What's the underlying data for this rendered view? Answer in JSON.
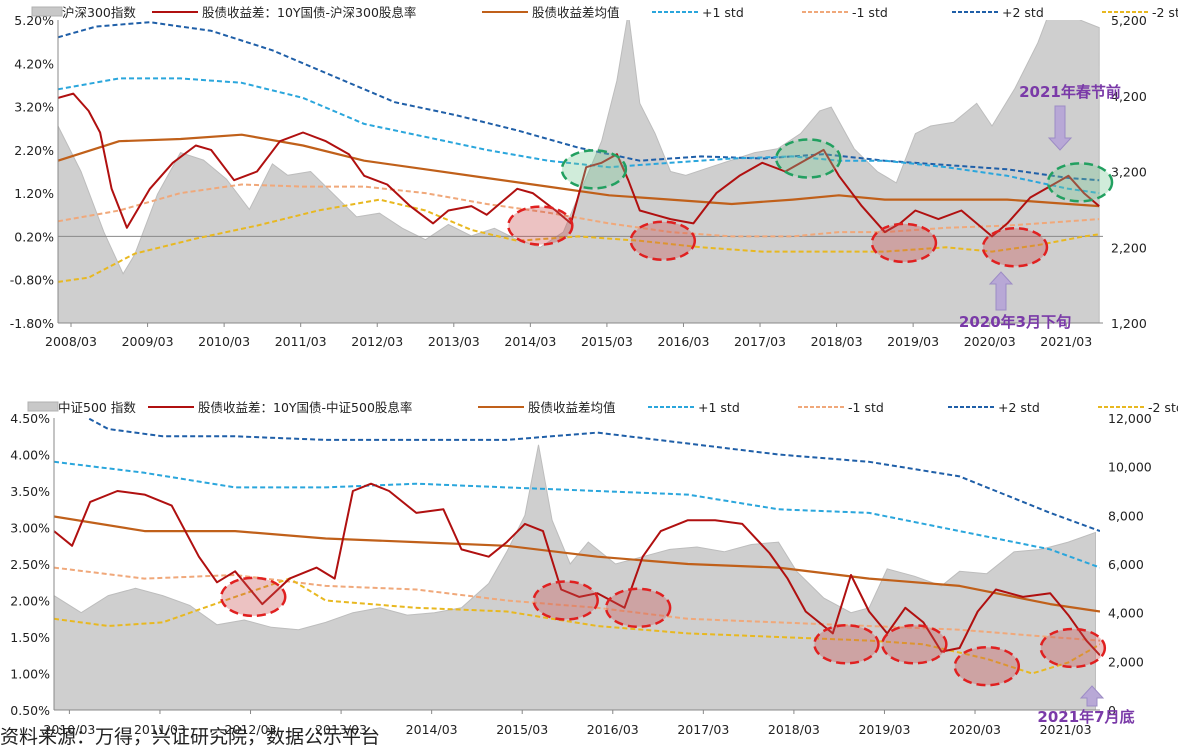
{
  "chart_data": [
    {
      "type": "line",
      "legend": [
        {
          "name": "沪深300指数",
          "kind": "area",
          "color": "#c8c8c8"
        },
        {
          "name": "股债收益差：10Y国债-沪深300股息率",
          "kind": "line",
          "color": "#b01010"
        },
        {
          "name": "股债收益差均值",
          "kind": "line",
          "color": "#c0601a"
        },
        {
          "name": "+1 std",
          "kind": "dash",
          "color": "#2aa6dc"
        },
        {
          "name": "-1 std",
          "kind": "dash",
          "color": "#f0a87a"
        },
        {
          "name": "+2 std",
          "kind": "dash",
          "color": "#1f5fa8"
        },
        {
          "name": "-2 std",
          "kind": "dash",
          "color": "#e8b820"
        }
      ],
      "x_ticks": [
        "2008/03",
        "2009/03",
        "2010/03",
        "2011/03",
        "2012/03",
        "2013/03",
        "2014/03",
        "2015/03",
        "2016/03",
        "2017/03",
        "2018/03",
        "2019/03",
        "2020/03",
        "2021/03"
      ],
      "x_range": [
        2008.0,
        2021.65
      ],
      "y_left_ticks": [
        "5.20%",
        "4.20%",
        "3.20%",
        "2.20%",
        "1.20%",
        "0.20%",
        "-0.80%",
        "-1.80%"
      ],
      "y_left_range": [
        -1.8,
        5.2
      ],
      "y_right_ticks": [
        "5,200",
        "4,200",
        "3,200",
        "2,200",
        "1,200"
      ],
      "y_right_range": [
        1200,
        5200
      ],
      "index": {
        "x": [
          2008.0,
          2008.3,
          2008.6,
          2008.85,
          2009.0,
          2009.3,
          2009.6,
          2009.9,
          2010.2,
          2010.5,
          2010.8,
          2011.0,
          2011.3,
          2011.6,
          2011.9,
          2012.2,
          2012.5,
          2012.8,
          2013.1,
          2013.4,
          2013.7,
          2014.0,
          2014.3,
          2014.6,
          2014.85,
          2015.1,
          2015.3,
          2015.45,
          2015.6,
          2015.8,
          2016.0,
          2016.2,
          2016.5,
          2016.8,
          2017.1,
          2017.4,
          2017.7,
          2017.95,
          2018.1,
          2018.4,
          2018.7,
          2018.95,
          2019.2,
          2019.4,
          2019.7,
          2020.0,
          2020.2,
          2020.5,
          2020.8,
          2021.1,
          2021.35,
          2021.6
        ],
        "y": [
          3800,
          3200,
          2400,
          1850,
          2100,
          2900,
          3450,
          3350,
          3100,
          2700,
          3300,
          3150,
          3200,
          2900,
          2600,
          2650,
          2450,
          2300,
          2500,
          2350,
          2450,
          2300,
          2200,
          2400,
          3000,
          3600,
          4400,
          5300,
          4100,
          3700,
          3200,
          3150,
          3250,
          3350,
          3450,
          3500,
          3700,
          4000,
          4050,
          3500,
          3200,
          3050,
          3700,
          3800,
          3850,
          4100,
          3800,
          4300,
          4900,
          5700,
          5200,
          5100
        ]
      },
      "spread": {
        "x": [
          2008.0,
          2008.2,
          2008.4,
          2008.55,
          2008.7,
          2008.9,
          2009.2,
          2009.5,
          2009.8,
          2010.0,
          2010.3,
          2010.6,
          2010.9,
          2011.2,
          2011.5,
          2011.8,
          2012.0,
          2012.3,
          2012.6,
          2012.9,
          2013.1,
          2013.4,
          2013.6,
          2013.8,
          2014.0,
          2014.2,
          2014.5,
          2014.7,
          2014.9,
          2015.1,
          2015.3,
          2015.45,
          2015.6,
          2015.8,
          2016.0,
          2016.3,
          2016.6,
          2016.9,
          2017.2,
          2017.5,
          2017.8,
          2018.0,
          2018.2,
          2018.5,
          2018.8,
          2019.0,
          2019.2,
          2019.5,
          2019.8,
          2020.0,
          2020.2,
          2020.4,
          2020.7,
          2021.0,
          2021.2,
          2021.4,
          2021.6
        ],
        "y": [
          3.4,
          3.5,
          3.1,
          2.6,
          1.3,
          0.4,
          1.3,
          1.9,
          2.3,
          2.2,
          1.5,
          1.7,
          2.4,
          2.6,
          2.4,
          2.1,
          1.6,
          1.4,
          0.9,
          0.5,
          0.8,
          0.9,
          0.7,
          1.0,
          1.3,
          1.2,
          0.8,
          0.5,
          1.8,
          1.9,
          2.1,
          1.5,
          0.8,
          0.7,
          0.6,
          0.5,
          1.2,
          1.6,
          1.9,
          1.7,
          2.0,
          2.2,
          1.6,
          0.9,
          0.3,
          0.5,
          0.8,
          0.6,
          0.8,
          0.5,
          0.2,
          0.5,
          1.1,
          1.4,
          1.6,
          1.2,
          0.9
        ]
      },
      "mean": {
        "x": [
          2008.0,
          2008.8,
          2009.6,
          2010.4,
          2011.2,
          2012.0,
          2012.8,
          2013.6,
          2014.4,
          2015.2,
          2016.0,
          2016.8,
          2017.6,
          2018.2,
          2018.8,
          2019.6,
          2020.4,
          2021.2,
          2021.6
        ],
        "y": [
          1.95,
          2.4,
          2.45,
          2.55,
          2.3,
          1.95,
          1.75,
          1.55,
          1.35,
          1.15,
          1.05,
          0.95,
          1.05,
          1.15,
          1.05,
          1.05,
          1.05,
          0.95,
          0.9
        ]
      },
      "plus1": {
        "x": [
          2008.0,
          2008.8,
          2009.6,
          2010.4,
          2011.2,
          2012.0,
          2012.8,
          2013.6,
          2014.4,
          2015.2,
          2016.0,
          2016.8,
          2017.6,
          2018.2,
          2018.8,
          2019.6,
          2020.4,
          2021.2,
          2021.6
        ],
        "y": [
          3.6,
          3.85,
          3.85,
          3.75,
          3.4,
          2.8,
          2.5,
          2.2,
          1.95,
          1.8,
          1.9,
          2.0,
          2.05,
          1.95,
          1.95,
          1.8,
          1.6,
          1.3,
          1.2
        ]
      },
      "minus1": {
        "x": [
          2008.0,
          2008.8,
          2009.6,
          2010.4,
          2011.2,
          2012.0,
          2012.8,
          2013.6,
          2014.4,
          2015.2,
          2016.0,
          2016.8,
          2017.6,
          2018.2,
          2018.8,
          2019.6,
          2020.4,
          2021.2,
          2021.6
        ],
        "y": [
          0.55,
          0.8,
          1.2,
          1.4,
          1.35,
          1.35,
          1.2,
          0.95,
          0.75,
          0.5,
          0.3,
          0.2,
          0.2,
          0.3,
          0.3,
          0.4,
          0.45,
          0.55,
          0.6
        ]
      },
      "plus2": {
        "x": [
          2008.0,
          2008.5,
          2009.2,
          2010.0,
          2010.8,
          2011.6,
          2012.4,
          2013.2,
          2014.0,
          2014.8,
          2015.6,
          2016.4,
          2017.2,
          2018.0,
          2018.8,
          2019.6,
          2020.4,
          2021.2,
          2021.6
        ],
        "y": [
          4.8,
          5.05,
          5.15,
          4.95,
          4.5,
          3.9,
          3.3,
          3.0,
          2.65,
          2.25,
          1.95,
          2.05,
          2.0,
          2.1,
          1.95,
          1.85,
          1.75,
          1.55,
          1.5
        ]
      },
      "minus2": {
        "x": [
          2008.0,
          2008.4,
          2009.0,
          2009.8,
          2010.6,
          2011.4,
          2012.2,
          2012.8,
          2013.4,
          2014.0,
          2014.8,
          2015.6,
          2016.4,
          2017.2,
          2018.0,
          2018.8,
          2019.6,
          2020.2,
          2020.8,
          2021.4,
          2021.6
        ],
        "y": [
          -0.85,
          -0.75,
          -0.2,
          0.15,
          0.45,
          0.8,
          1.05,
          0.8,
          0.35,
          0.1,
          0.2,
          0.1,
          -0.05,
          -0.15,
          -0.15,
          -0.15,
          -0.05,
          -0.15,
          0.0,
          0.2,
          0.25
        ]
      },
      "markers": [
        {
          "shape": "red-ellipse",
          "x": 2014.3,
          "y": 0.45
        },
        {
          "shape": "red-ellipse",
          "x": 2015.9,
          "y": 0.1
        },
        {
          "shape": "red-ellipse",
          "x": 2019.05,
          "y": 0.05
        },
        {
          "shape": "red-ellipse",
          "x": 2020.5,
          "y": -0.05
        },
        {
          "shape": "green-ellipse",
          "x": 2015.0,
          "y": 1.75
        },
        {
          "shape": "green-ellipse",
          "x": 2017.8,
          "y": 2.0
        },
        {
          "shape": "green-ellipse",
          "x": 2021.35,
          "y": 1.45
        }
      ],
      "annotations": [
        {
          "text": "2021年春节前",
          "arrow": "down"
        },
        {
          "text": "2020年3月下旬",
          "arrow": "up"
        }
      ]
    },
    {
      "type": "line",
      "legend": [
        {
          "name": "中证500 指数",
          "kind": "area",
          "color": "#c8c8c8"
        },
        {
          "name": "股债收益差：10Y国债-中证500股息率",
          "kind": "line",
          "color": "#b01010"
        },
        {
          "name": "股债收益差均值",
          "kind": "line",
          "color": "#c0601a"
        },
        {
          "name": "+1 std",
          "kind": "dash",
          "color": "#2aa6dc"
        },
        {
          "name": "-1 std",
          "kind": "dash",
          "color": "#f0a87a"
        },
        {
          "name": "+2 std",
          "kind": "dash",
          "color": "#1f5fa8"
        },
        {
          "name": "-2 std",
          "kind": "dash",
          "color": "#e8b820"
        }
      ],
      "x_ticks": [
        "2010/03",
        "2011/03",
        "2012/03",
        "2013/03",
        "2014/03",
        "2015/03",
        "2016/03",
        "2017/03",
        "2018/03",
        "2019/03",
        "2020/03",
        "2021/03"
      ],
      "x_range": [
        2010.0,
        2021.55
      ],
      "y_left_ticks": [
        "4.50%",
        "4.00%",
        "3.50%",
        "3.00%",
        "2.50%",
        "2.00%",
        "1.50%",
        "1.00%",
        "0.50%"
      ],
      "y_left_range": [
        0.5,
        4.5
      ],
      "y_right_ticks": [
        "12,000",
        "10,000",
        "8,000",
        "6,000",
        "4,000",
        "2,000",
        "0"
      ],
      "y_right_range": [
        0,
        12000
      ],
      "index": {
        "x": [
          2010.0,
          2010.3,
          2010.6,
          2010.9,
          2011.2,
          2011.5,
          2011.8,
          2012.1,
          2012.4,
          2012.7,
          2013.0,
          2013.3,
          2013.6,
          2013.9,
          2014.2,
          2014.5,
          2014.8,
          2015.0,
          2015.2,
          2015.35,
          2015.5,
          2015.7,
          2015.9,
          2016.2,
          2016.5,
          2016.8,
          2017.1,
          2017.4,
          2017.7,
          2018.0,
          2018.2,
          2018.5,
          2018.8,
          2019.0,
          2019.2,
          2019.5,
          2019.8,
          2020.0,
          2020.3,
          2020.6,
          2020.9,
          2021.2,
          2021.5
        ],
        "y": [
          4700,
          4000,
          4700,
          5000,
          4700,
          4300,
          3500,
          3700,
          3400,
          3300,
          3600,
          4000,
          4200,
          3900,
          4000,
          4200,
          5200,
          6500,
          8000,
          10900,
          7800,
          6000,
          6900,
          6000,
          6300,
          6600,
          6700,
          6500,
          6800,
          6900,
          5700,
          4600,
          4000,
          4200,
          5800,
          5500,
          5100,
          5700,
          5600,
          6500,
          6600,
          6900,
          7300
        ]
      },
      "spread": {
        "x": [
          2010.0,
          2010.2,
          2010.4,
          2010.7,
          2011.0,
          2011.3,
          2011.6,
          2011.8,
          2012.0,
          2012.3,
          2012.6,
          2012.9,
          2013.1,
          2013.3,
          2013.5,
          2013.7,
          2014.0,
          2014.3,
          2014.5,
          2014.8,
          2015.0,
          2015.2,
          2015.4,
          2015.6,
          2015.8,
          2016.0,
          2016.3,
          2016.5,
          2016.7,
          2017.0,
          2017.3,
          2017.6,
          2017.9,
          2018.1,
          2018.3,
          2018.6,
          2018.8,
          2019.0,
          2019.2,
          2019.4,
          2019.6,
          2019.8,
          2020.0,
          2020.2,
          2020.4,
          2020.7,
          2021.0,
          2021.2,
          2021.4,
          2021.55
        ],
        "y": [
          2.95,
          2.75,
          3.35,
          3.5,
          3.45,
          3.3,
          2.6,
          2.25,
          2.4,
          1.95,
          2.3,
          2.45,
          2.3,
          3.5,
          3.6,
          3.5,
          3.2,
          3.25,
          2.7,
          2.6,
          2.8,
          3.05,
          2.95,
          2.15,
          2.05,
          2.1,
          1.9,
          2.6,
          2.95,
          3.1,
          3.1,
          3.05,
          2.65,
          2.3,
          1.85,
          1.55,
          2.35,
          1.85,
          1.55,
          1.9,
          1.7,
          1.3,
          1.35,
          1.85,
          2.15,
          2.05,
          2.1,
          1.8,
          1.45,
          1.25
        ]
      },
      "mean": {
        "x": [
          2010.0,
          2011.0,
          2012.0,
          2013.0,
          2014.0,
          2015.0,
          2016.0,
          2017.0,
          2018.0,
          2019.0,
          2020.0,
          2021.0,
          2021.55
        ],
        "y": [
          3.15,
          2.95,
          2.95,
          2.85,
          2.8,
          2.75,
          2.6,
          2.5,
          2.45,
          2.3,
          2.2,
          1.95,
          1.85
        ]
      },
      "plus1": {
        "x": [
          2010.0,
          2011.0,
          2012.0,
          2013.0,
          2014.0,
          2015.0,
          2016.0,
          2017.0,
          2018.0,
          2019.0,
          2020.0,
          2021.0,
          2021.55
        ],
        "y": [
          3.9,
          3.75,
          3.55,
          3.55,
          3.6,
          3.55,
          3.5,
          3.45,
          3.25,
          3.2,
          2.95,
          2.7,
          2.45
        ]
      },
      "minus1": {
        "x": [
          2010.0,
          2011.0,
          2012.0,
          2013.0,
          2014.0,
          2015.0,
          2016.0,
          2017.0,
          2018.0,
          2019.0,
          2020.0,
          2021.0,
          2021.55
        ],
        "y": [
          2.45,
          2.3,
          2.35,
          2.2,
          2.15,
          2.0,
          1.9,
          1.75,
          1.7,
          1.65,
          1.6,
          1.5,
          1.45
        ]
      },
      "plus2": {
        "x": [
          2010.0,
          2010.6,
          2011.2,
          2012.0,
          2013.0,
          2014.0,
          2015.0,
          2016.0,
          2017.0,
          2018.0,
          2019.0,
          2020.0,
          2021.0,
          2021.55
        ],
        "y": [
          4.75,
          4.35,
          4.25,
          4.25,
          4.2,
          4.2,
          4.2,
          4.3,
          4.15,
          4.0,
          3.9,
          3.7,
          3.2,
          2.95
        ]
      },
      "minus2": {
        "x": [
          2010.0,
          2010.6,
          2011.2,
          2012.0,
          2012.6,
          2013.0,
          2014.0,
          2015.0,
          2016.0,
          2017.0,
          2018.0,
          2019.0,
          2019.6,
          2020.3,
          2020.8,
          2021.2,
          2021.55
        ],
        "y": [
          1.75,
          1.65,
          1.7,
          2.05,
          2.3,
          2.0,
          1.9,
          1.85,
          1.65,
          1.55,
          1.5,
          1.45,
          1.4,
          1.2,
          1.0,
          1.15,
          1.4
        ]
      },
      "markers": [
        {
          "shape": "red-ellipse",
          "x": 2012.2,
          "y": 2.05
        },
        {
          "shape": "red-ellipse",
          "x": 2015.65,
          "y": 2.0
        },
        {
          "shape": "red-ellipse",
          "x": 2016.45,
          "y": 1.9
        },
        {
          "shape": "red-ellipse",
          "x": 2018.75,
          "y": 1.4
        },
        {
          "shape": "red-ellipse",
          "x": 2019.5,
          "y": 1.4
        },
        {
          "shape": "red-ellipse",
          "x": 2020.3,
          "y": 1.1
        },
        {
          "shape": "red-ellipse",
          "x": 2021.25,
          "y": 1.35
        }
      ],
      "annotations": [
        {
          "text": "2021年7月底",
          "arrow": "up"
        }
      ]
    }
  ],
  "footer_text": "资料来源：万得，兴证研究院，数据公示平台"
}
